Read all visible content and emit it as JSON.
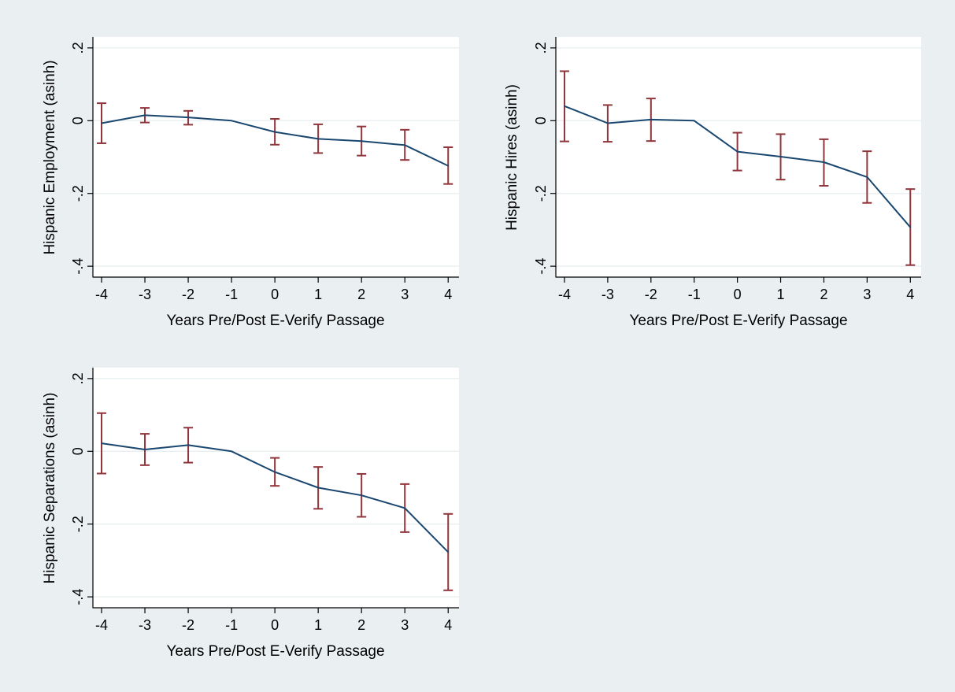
{
  "colors": {
    "background": "#eaf0f2",
    "plot_background": "#ffffff",
    "line": "#1a476f",
    "error_bars": "#90353b",
    "gridline": "#eaf0f2",
    "axis": "#000000"
  },
  "chart_data": [
    {
      "type": "line",
      "title": "",
      "xlabel": "Years Pre/Post E-Verify Passage",
      "ylabel": "Hispanic Employment (asinh)",
      "x": [
        -4,
        -3,
        -2,
        -1,
        0,
        1,
        2,
        3,
        4
      ],
      "xticks": [
        -4,
        -3,
        -2,
        -1,
        0,
        1,
        2,
        3,
        4
      ],
      "xtick_labels": [
        "-4",
        "-3",
        "-2",
        "-1",
        "0",
        "1",
        "2",
        "3",
        "4"
      ],
      "yticks": [
        -0.4,
        -0.2,
        0,
        0.2
      ],
      "ytick_labels": [
        "-.4",
        "-.2",
        "0",
        ".2"
      ],
      "ylim": [
        -0.43,
        0.23
      ],
      "xlim": [
        -4.2,
        4.25
      ],
      "grid": true,
      "legend": "none",
      "series": [
        {
          "values": [
            -0.007,
            0.015,
            0.009,
            0.0,
            -0.031,
            -0.05,
            -0.056,
            -0.067,
            -0.124
          ],
          "ci_low": [
            -0.062,
            -0.005,
            -0.011,
            0.0,
            -0.066,
            -0.089,
            -0.096,
            -0.108,
            -0.174
          ],
          "ci_high": [
            0.048,
            0.035,
            0.027,
            0.0,
            0.005,
            -0.01,
            -0.016,
            -0.025,
            -0.073
          ]
        }
      ]
    },
    {
      "type": "line",
      "title": "",
      "xlabel": "Years Pre/Post E-Verify Passage",
      "ylabel": "Hispanic Hires (asinh)",
      "x": [
        -4,
        -3,
        -2,
        -1,
        0,
        1,
        2,
        3,
        4
      ],
      "xticks": [
        -4,
        -3,
        -2,
        -1,
        0,
        1,
        2,
        3,
        4
      ],
      "xtick_labels": [
        "-4",
        "-3",
        "-2",
        "-1",
        "0",
        "1",
        "2",
        "3",
        "4"
      ],
      "yticks": [
        -0.4,
        -0.2,
        0,
        0.2
      ],
      "ytick_labels": [
        "-.4",
        "-.2",
        "0",
        ".2"
      ],
      "ylim": [
        -0.43,
        0.23
      ],
      "xlim": [
        -4.2,
        4.25
      ],
      "grid": true,
      "legend": "none",
      "series": [
        {
          "values": [
            0.04,
            -0.007,
            0.003,
            0.0,
            -0.085,
            -0.099,
            -0.114,
            -0.155,
            -0.293
          ],
          "ci_low": [
            -0.057,
            -0.058,
            -0.056,
            0.0,
            -0.137,
            -0.162,
            -0.179,
            -0.226,
            -0.397
          ],
          "ci_high": [
            0.136,
            0.043,
            0.061,
            0.0,
            -0.033,
            -0.037,
            -0.051,
            -0.084,
            -0.188
          ]
        }
      ]
    },
    {
      "type": "line",
      "title": "",
      "xlabel": "Years Pre/Post E-Verify Passage",
      "ylabel": "Hispanic Separations (asinh)",
      "x": [
        -4,
        -3,
        -2,
        -1,
        0,
        1,
        2,
        3,
        4
      ],
      "xticks": [
        -4,
        -3,
        -2,
        -1,
        0,
        1,
        2,
        3,
        4
      ],
      "xtick_labels": [
        "-4",
        "-3",
        "-2",
        "-1",
        "0",
        "1",
        "2",
        "3",
        "4"
      ],
      "yticks": [
        -0.4,
        -0.2,
        0,
        0.2
      ],
      "ytick_labels": [
        "-.4",
        "-.2",
        "0",
        ".2"
      ],
      "ylim": [
        -0.43,
        0.23
      ],
      "xlim": [
        -4.2,
        4.25
      ],
      "grid": true,
      "legend": "none",
      "series": [
        {
          "values": [
            0.022,
            0.005,
            0.017,
            0.0,
            -0.057,
            -0.1,
            -0.121,
            -0.156,
            -0.277
          ],
          "ci_low": [
            -0.061,
            -0.038,
            -0.031,
            0.0,
            -0.095,
            -0.158,
            -0.18,
            -0.222,
            -0.382
          ],
          "ci_high": [
            0.105,
            0.048,
            0.065,
            0.0,
            -0.018,
            -0.043,
            -0.062,
            -0.09,
            -0.172
          ]
        }
      ]
    }
  ]
}
